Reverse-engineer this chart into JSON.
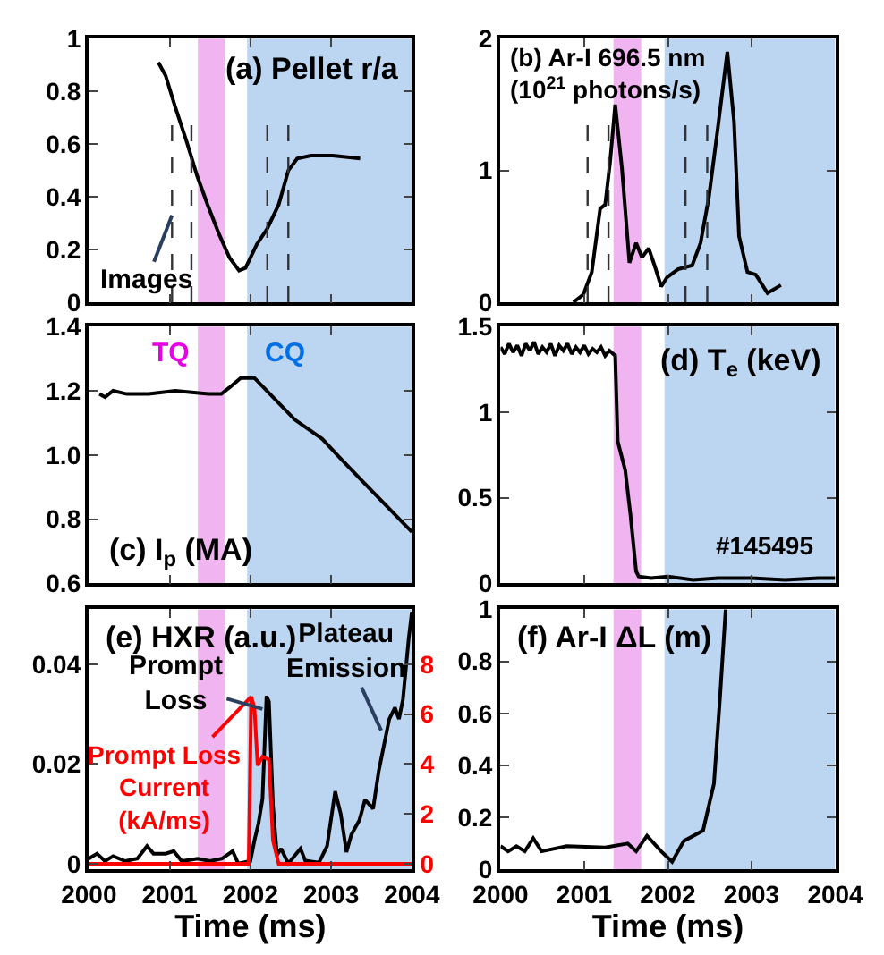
{
  "chart_data": [
    {
      "type": "line",
      "title": "(a) Pellet r/a",
      "xlim": [
        2000,
        2004
      ],
      "xticks": [
        2000,
        2001,
        2002,
        2003,
        2004
      ],
      "ylim": [
        0,
        1
      ],
      "yticks": [
        0,
        0.2,
        0.4,
        0.6,
        0.8,
        1
      ],
      "tick_labels": "y",
      "marker": "none",
      "line_style": "solid",
      "series": [
        {
          "color": "#000000",
          "x": [
            2000.86,
            2000.95,
            2001.07,
            2001.21,
            2001.34,
            2001.47,
            2001.61,
            2001.74,
            2001.86,
            2001.94,
            2002.08,
            2002.21,
            2002.35,
            2002.47,
            2002.58,
            2002.75,
            2003.02,
            2003.36
          ],
          "values": [
            0.91,
            0.86,
            0.74,
            0.61,
            0.48,
            0.37,
            0.26,
            0.17,
            0.12,
            0.13,
            0.22,
            0.28,
            0.37,
            0.5,
            0.545,
            0.556,
            0.556,
            0.545
          ]
        }
      ],
      "bands": [
        {
          "axis": "x",
          "from": 2001.35,
          "to": 2001.68,
          "color": "#f0b4f0"
        },
        {
          "axis": "x",
          "from": 2001.96,
          "to": 2004,
          "color": "#bcd6f2"
        }
      ],
      "ref_lines": [
        {
          "axis": "x",
          "value": 2001.03,
          "color": "#333333",
          "line_style": "dashed"
        },
        {
          "axis": "x",
          "value": 2001.27,
          "color": "#333333",
          "line_style": "dashed"
        },
        {
          "axis": "x",
          "value": 2002.21,
          "color": "#333333",
          "line_style": "dashed"
        },
        {
          "axis": "x",
          "value": 2002.47,
          "color": "#333333",
          "line_style": "dashed"
        }
      ],
      "annotations": [
        {
          "text": "Images",
          "x": 2001.03,
          "y": 0.33
        }
      ]
    },
    {
      "type": "line",
      "title": "(b) Ar-I 696.5 nm",
      "subtitle": "(10$^{21}$ photons/s)",
      "xlim": [
        2000,
        2004
      ],
      "xticks": [
        2000,
        2001,
        2002,
        2003,
        2004
      ],
      "ylim": [
        0,
        2
      ],
      "yticks": [
        0,
        1,
        2
      ],
      "tick_labels": "y",
      "marker": "none",
      "line_style": "solid",
      "series": [
        {
          "color": "#000000",
          "x": [
            2000.87,
            2000.99,
            2001.09,
            2001.19,
            2001.25,
            2001.31,
            2001.37,
            2001.45,
            2001.54,
            2001.62,
            2001.69,
            2001.77,
            2001.84,
            2001.92,
            2001.99,
            2002.12,
            2002.29,
            2002.39,
            2002.49,
            2002.59,
            2002.71,
            2002.79,
            2002.85,
            2002.95,
            2003.05,
            2003.19,
            2003.35
          ],
          "values": [
            0,
            0.06,
            0.23,
            0.71,
            0.74,
            1.07,
            1.5,
            1.02,
            0.3,
            0.45,
            0.34,
            0.41,
            0.28,
            0.12,
            0.19,
            0.25,
            0.28,
            0.45,
            0.8,
            1.29,
            1.9,
            1.37,
            0.5,
            0.23,
            0.21,
            0.07,
            0.13
          ]
        }
      ],
      "bands": [
        {
          "axis": "x",
          "from": 2001.35,
          "to": 2001.68,
          "color": "#f0b4f0"
        },
        {
          "axis": "x",
          "from": 2001.96,
          "to": 2004,
          "color": "#bcd6f2"
        }
      ],
      "ref_lines": [
        {
          "axis": "x",
          "value": 2001.04,
          "color": "#333333",
          "line_style": "dashed"
        },
        {
          "axis": "x",
          "value": 2001.29,
          "color": "#333333",
          "line_style": "dashed"
        },
        {
          "axis": "x",
          "value": 2002.21,
          "color": "#333333",
          "line_style": "dashed"
        },
        {
          "axis": "x",
          "value": 2002.47,
          "color": "#333333",
          "line_style": "dashed"
        }
      ]
    },
    {
      "type": "line",
      "title": "(c) I$_{p}$ (MA)",
      "xlim": [
        2000,
        2004
      ],
      "xticks": [
        2000,
        2001,
        2002,
        2003,
        2004
      ],
      "ylim": [
        0.6,
        1.4
      ],
      "yticks": [
        0.6,
        0.8,
        {
          "value": 1,
          "label": "1.0"
        },
        1.2,
        1.4
      ],
      "tick_labels": "y",
      "marker": "none",
      "line_style": "solid",
      "series": [
        {
          "color": "#000000",
          "x": [
            2000.13,
            2000.2,
            2000.3,
            2000.47,
            2000.74,
            2001.07,
            2001.48,
            2001.64,
            2001.74,
            2001.88,
            2002.05,
            2002.28,
            2002.55,
            2002.89,
            2003.15,
            2003.42,
            2003.69,
            2004.0
          ],
          "values": [
            1.19,
            1.18,
            1.2,
            1.19,
            1.19,
            1.2,
            1.19,
            1.19,
            1.21,
            1.24,
            1.24,
            1.18,
            1.11,
            1.05,
            0.98,
            0.91,
            0.84,
            0.76
          ]
        }
      ],
      "bands": [
        {
          "axis": "x",
          "from": 2001.35,
          "to": 2001.68,
          "color": "#f0b4f0",
          "label": "TQ"
        },
        {
          "axis": "x",
          "from": 2001.96,
          "to": 2004,
          "color": "#bcd6f2",
          "label": "CQ"
        }
      ]
    },
    {
      "type": "line",
      "title": "(d) T$_{e}$ (keV)",
      "xlim": [
        2000,
        2004
      ],
      "xticks": [
        2000,
        2001,
        2002,
        2003,
        2004
      ],
      "ylim": [
        0,
        1.5
      ],
      "yticks": [
        0,
        0.5,
        1,
        1.5
      ],
      "tick_labels": "y",
      "marker": "none",
      "line_style": "solid",
      "series": [
        {
          "color": "#000000",
          "x": [
            2000.0,
            2000.05,
            2000.1,
            2000.15,
            2000.2,
            2000.25,
            2000.3,
            2000.35,
            2000.4,
            2000.45,
            2000.5,
            2000.55,
            2000.6,
            2000.65,
            2000.7,
            2000.75,
            2000.8,
            2000.85,
            2000.9,
            2000.95,
            2001.0,
            2001.05,
            2001.1,
            2001.15,
            2001.2,
            2001.25,
            2001.3,
            2001.37,
            2001.4,
            2001.49,
            2001.55,
            2001.62,
            2001.65,
            2001.8,
            2002.0,
            2002.3,
            2002.6,
            2003.0,
            2003.4,
            2003.8,
            2004.0
          ],
          "values": [
            1.38,
            1.34,
            1.4,
            1.35,
            1.39,
            1.33,
            1.4,
            1.36,
            1.41,
            1.34,
            1.38,
            1.35,
            1.4,
            1.33,
            1.39,
            1.36,
            1.4,
            1.34,
            1.38,
            1.35,
            1.39,
            1.34,
            1.37,
            1.35,
            1.38,
            1.33,
            1.36,
            1.33,
            0.83,
            0.66,
            0.41,
            0.07,
            0.04,
            0.03,
            0.04,
            0.02,
            0.03,
            0.03,
            0.02,
            0.03,
            0.03
          ]
        }
      ],
      "bands": [
        {
          "axis": "x",
          "from": 2001.35,
          "to": 2001.68,
          "color": "#f0b4f0"
        },
        {
          "axis": "x",
          "from": 2001.96,
          "to": 2004,
          "color": "#bcd6f2"
        }
      ],
      "annotations": [
        "#145495"
      ]
    },
    {
      "type": "line",
      "title": "(e) HXR (a.u.)",
      "xlabel": "Time (ms)",
      "xlim": [
        2000,
        2004
      ],
      "xticks": [
        2000,
        2001,
        2002,
        2003,
        2004
      ],
      "ylim": [
        -0.0012,
        0.051
      ],
      "yticks": [
        0,
        0.02,
        0.04
      ],
      "y2lim": [
        -0.23,
        10.2
      ],
      "y2ticks": [
        0,
        2,
        4,
        6,
        8
      ],
      "marker": "none",
      "line_style": "solid",
      "series": [
        {
          "color": "#000000",
          "x": [
            2000.0,
            2000.1,
            2000.2,
            2000.3,
            2000.45,
            2000.6,
            2000.72,
            2000.8,
            2000.95,
            2001.05,
            2001.15,
            2001.35,
            2001.5,
            2001.65,
            2001.78,
            2001.85,
            2002.0,
            2002.05,
            2002.1,
            2002.15,
            2002.2,
            2002.23,
            2002.28,
            2002.33,
            2002.38,
            2002.47,
            2002.62,
            2002.68,
            2002.85,
            2002.95,
            2003.05,
            2003.12,
            2003.19,
            2003.25,
            2003.35,
            2003.42,
            2003.52,
            2003.59,
            2003.72,
            2003.79,
            2003.84,
            2003.89,
            2003.96,
            2004.0
          ],
          "values": [
            0.001,
            0.002,
            0.0005,
            0.0015,
            0.0005,
            0.001,
            0.0035,
            0.002,
            0.002,
            0.0025,
            0.0005,
            0.001,
            0.0005,
            0.001,
            0.0025,
            0,
            0.0005,
            0.0046,
            0.008,
            0.013,
            0.0336,
            0.0325,
            0.0116,
            0.0017,
            0.003,
            0,
            0.003,
            0.0006,
            0.0002,
            0.0035,
            0.0145,
            0.0099,
            0.0023,
            0.0058,
            0.0087,
            0.0128,
            0.011,
            0.0186,
            0.029,
            0.0313,
            0.029,
            0.033,
            0.045,
            0.0505
          ]
        },
        {
          "name": "Prompt Loss\nCurrent\n(kA/ms)",
          "color": "#ff0000",
          "axis": "y2",
          "x": [
            2000.0,
            2001.5,
            2001.97,
            2001.98,
            2002.01,
            2002.05,
            2002.09,
            2002.15,
            2002.23,
            2002.28,
            2002.35,
            2003.0,
            2004.0
          ],
          "values": [
            0,
            0,
            0,
            0.23,
            6.7,
            6.26,
            3.94,
            4.29,
            4.18,
            0.93,
            0,
            0,
            0
          ]
        }
      ],
      "bands": [
        {
          "axis": "x",
          "from": 2001.35,
          "to": 2001.68,
          "color": "#f0b4f0"
        },
        {
          "axis": "x",
          "from": 2001.96,
          "to": 2004,
          "color": "#bcd6f2"
        }
      ],
      "annotations": [
        {
          "text": "Prompt\nLoss",
          "x": 2002.15,
          "y": 0.031
        },
        {
          "text": "Plateau\nEmission",
          "x": 2003.62,
          "y": 0.0267
        }
      ]
    },
    {
      "type": "line",
      "title": "(f) Ar-I ΔL (m)",
      "xlabel": "Time (ms)",
      "xlim": [
        2000,
        2004
      ],
      "xticks": [
        2000,
        2001,
        2002,
        2003,
        2004
      ],
      "ylim": [
        0,
        1
      ],
      "yticks": [
        0,
        0.2,
        0.4,
        0.6,
        0.8,
        1
      ],
      "marker": "none",
      "line_style": "solid",
      "series": [
        {
          "color": "#000000",
          "x": [
            2000.0,
            2000.09,
            2000.19,
            2000.29,
            2000.39,
            2000.49,
            2000.79,
            2001.25,
            2001.52,
            2001.62,
            2001.75,
            2001.92,
            2002.05,
            2002.19,
            2002.42,
            2002.55,
            2002.62,
            2002.69
          ],
          "values": [
            0.09,
            0.07,
            0.09,
            0.07,
            0.12,
            0.07,
            0.09,
            0.085,
            0.1,
            0.07,
            0.13,
            0.07,
            0.03,
            0.11,
            0.15,
            0.33,
            0.65,
            1.0
          ]
        }
      ],
      "bands": [
        {
          "axis": "x",
          "from": 2001.35,
          "to": 2001.68,
          "color": "#f0b4f0"
        },
        {
          "axis": "x",
          "from": 2001.96,
          "to": 2004,
          "color": "#bcd6f2"
        }
      ]
    }
  ]
}
